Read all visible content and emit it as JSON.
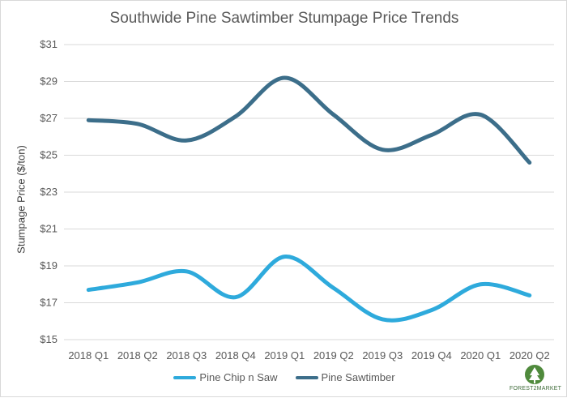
{
  "chart_data": {
    "type": "line",
    "title": "Southwide Pine Sawtimber Stumpage Price Trends",
    "xlabel": "",
    "ylabel": "Stumpage Price ($/ton)",
    "categories": [
      "2018 Q1",
      "2018 Q2",
      "2018 Q3",
      "2018 Q4",
      "2019 Q1",
      "2019 Q2",
      "2019 Q3",
      "2019 Q4",
      "2020 Q1",
      "2020 Q2"
    ],
    "y_ticks": [
      "$15",
      "$17",
      "$19",
      "$21",
      "$23",
      "$25",
      "$27",
      "$29",
      "$31"
    ],
    "ylim": [
      15,
      31
    ],
    "grid": true,
    "legend_position": "bottom",
    "series": [
      {
        "name": "Pine Chip n Saw",
        "color": "#2eaadc",
        "values": [
          17.7,
          18.1,
          18.7,
          17.3,
          19.5,
          17.8,
          16.1,
          16.6,
          18.0,
          17.4
        ]
      },
      {
        "name": "Pine Sawtimber",
        "color": "#3c6e8a",
        "values": [
          26.9,
          26.7,
          25.8,
          27.1,
          29.2,
          27.2,
          25.3,
          26.1,
          27.2,
          24.6
        ]
      }
    ]
  },
  "logo": {
    "text": "FOREST2MARKET"
  }
}
